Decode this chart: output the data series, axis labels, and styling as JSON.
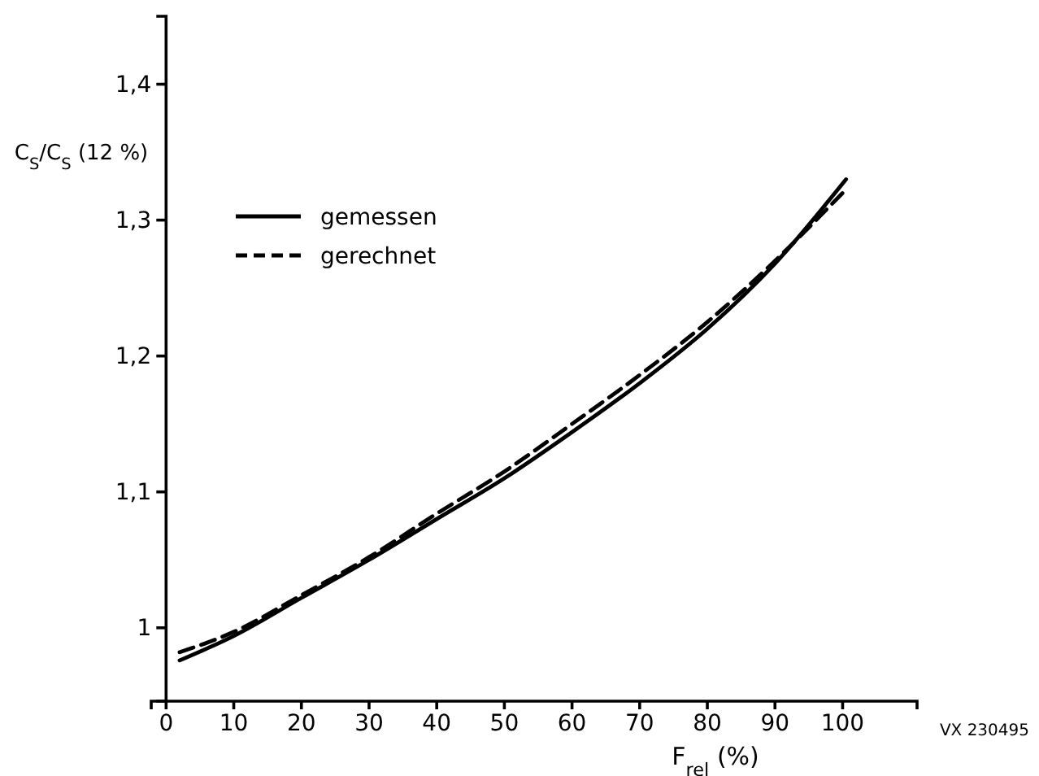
{
  "chart_data": {
    "type": "line",
    "xlabel": "F$_{rel}$ (%)",
    "ylabel": "C$_{S}$/C$_{S}$ (12 %)",
    "xlim": [
      -2.2,
      111
    ],
    "xticks": [
      0,
      10,
      20,
      30,
      40,
      50,
      60,
      70,
      80,
      90,
      100
    ],
    "ylim": [
      0.946,
      1.45
    ],
    "yticks": [
      1,
      {
        "value": 1.1,
        "label": "1,1"
      },
      {
        "value": 1.2,
        "label": "1,2"
      },
      {
        "value": 1.3,
        "label": "1,3"
      },
      {
        "value": 1.4,
        "label": "1,4"
      }
    ],
    "grid": false,
    "legend": "top left",
    "marker": "none",
    "annotations": [
      "VX 230495"
    ],
    "series": [
      {
        "name": "gemessen",
        "color": "#000000",
        "line_style": "solid",
        "x": [
          2,
          10,
          20,
          30,
          40,
          50,
          60,
          70,
          80,
          90,
          100.5
        ],
        "values": [
          0.976,
          0.994,
          1.022,
          1.05,
          1.08,
          1.11,
          1.144,
          1.18,
          1.22,
          1.268,
          1.33
        ]
      },
      {
        "name": "gerechnet",
        "color": "#000000",
        "line_style": "dashed",
        "x": [
          2,
          10,
          20,
          30,
          40,
          50,
          60,
          70,
          80,
          90,
          100
        ],
        "values": [
          0.982,
          0.997,
          1.024,
          1.052,
          1.084,
          1.115,
          1.15,
          1.186,
          1.225,
          1.27,
          1.32
        ]
      }
    ]
  }
}
